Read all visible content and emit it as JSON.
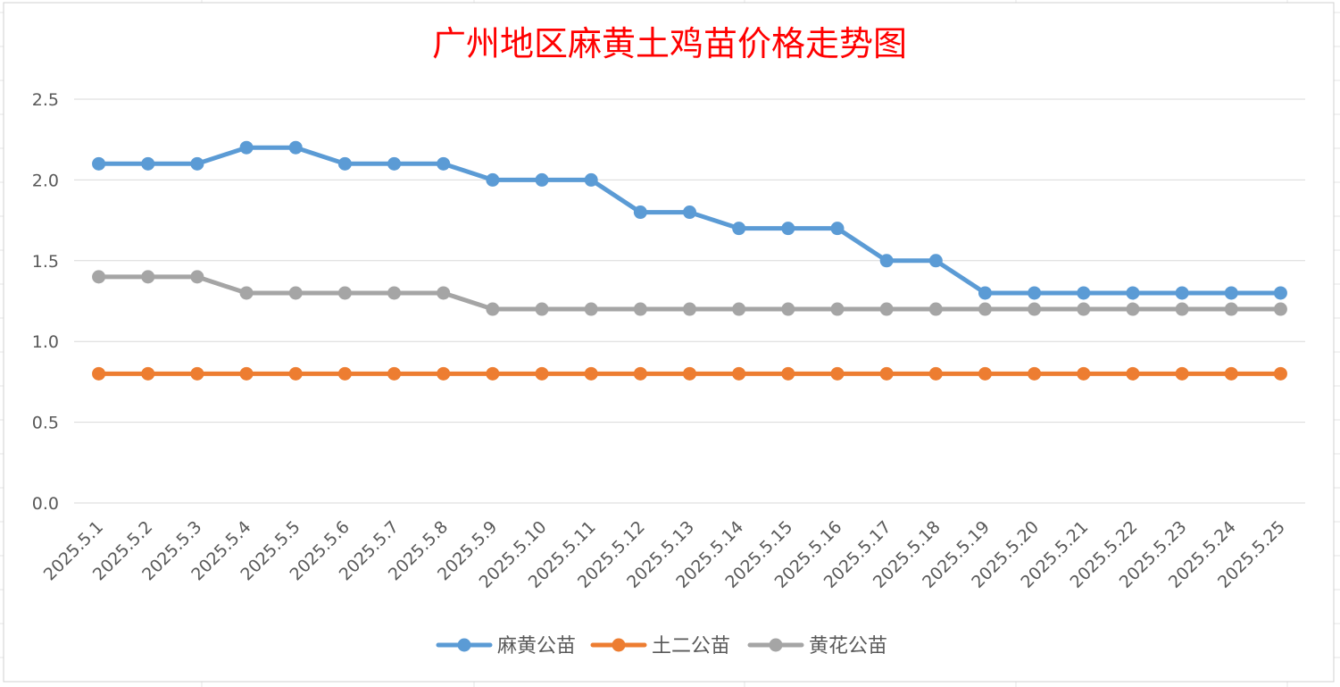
{
  "chart_data": {
    "type": "line",
    "title": "广州地区麻黄土鸡苗价格走势图",
    "xlabel": "",
    "ylabel": "",
    "ylim": [
      0,
      2.5
    ],
    "yticks": [
      "0.0",
      "0.5",
      "1.0",
      "1.5",
      "2.0",
      "2.5"
    ],
    "grid": true,
    "legend_position": "bottom",
    "categories": [
      "2025.5.1",
      "2025.5.2",
      "2025.5.3",
      "2025.5.4",
      "2025.5.5",
      "2025.5.6",
      "2025.5.7",
      "2025.5.8",
      "2025.5.9",
      "2025.5.10",
      "2025.5.11",
      "2025.5.12",
      "2025.5.13",
      "2025.5.14",
      "2025.5.15",
      "2025.5.16",
      "2025.5.17",
      "2025.5.18",
      "2025.5.19",
      "2025.5.20",
      "2025.5.21",
      "2025.5.22",
      "2025.5.23",
      "2025.5.24",
      "2025.5.25"
    ],
    "series": [
      {
        "name": "麻黄公苗",
        "color": "#5b9bd5",
        "values": [
          2.1,
          2.1,
          2.1,
          2.2,
          2.2,
          2.1,
          2.1,
          2.1,
          2.0,
          2.0,
          2.0,
          1.8,
          1.8,
          1.7,
          1.7,
          1.7,
          1.5,
          1.5,
          1.3,
          1.3,
          1.3,
          1.3,
          1.3,
          1.3,
          1.3
        ]
      },
      {
        "name": "土二公苗",
        "color": "#ed7d31",
        "values": [
          0.8,
          0.8,
          0.8,
          0.8,
          0.8,
          0.8,
          0.8,
          0.8,
          0.8,
          0.8,
          0.8,
          0.8,
          0.8,
          0.8,
          0.8,
          0.8,
          0.8,
          0.8,
          0.8,
          0.8,
          0.8,
          0.8,
          0.8,
          0.8,
          0.8
        ]
      },
      {
        "name": "黄花公苗",
        "color": "#a5a5a5",
        "values": [
          1.4,
          1.4,
          1.4,
          1.3,
          1.3,
          1.3,
          1.3,
          1.3,
          1.2,
          1.2,
          1.2,
          1.2,
          1.2,
          1.2,
          1.2,
          1.2,
          1.2,
          1.2,
          1.2,
          1.2,
          1.2,
          1.2,
          1.2,
          1.2,
          1.2
        ]
      }
    ]
  }
}
